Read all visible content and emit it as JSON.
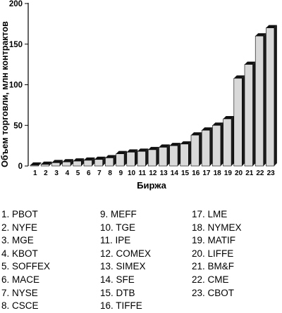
{
  "chart_data": {
    "type": "bar",
    "ylabel": "Объем торговли, млн контрактов",
    "xlabel": "Биржа",
    "ylim": [
      0,
      200
    ],
    "yticks": [
      0,
      50,
      100,
      150,
      200
    ],
    "grid": false,
    "legend": "below",
    "categories": [
      "1",
      "2",
      "3",
      "4",
      "5",
      "6",
      "7",
      "8",
      "9",
      "10",
      "11",
      "12",
      "13",
      "14",
      "15",
      "16",
      "17",
      "18",
      "19",
      "20",
      "21",
      "22",
      "23"
    ],
    "values": [
      1,
      2,
      4,
      5,
      6,
      7,
      8,
      10,
      15,
      17,
      18,
      20,
      23,
      25,
      27,
      38,
      44,
      50,
      58,
      108,
      125,
      160,
      170
    ]
  },
  "legend": {
    "separator": ". ",
    "items": [
      {
        "num": "1",
        "name": "PBOT"
      },
      {
        "num": "2",
        "name": "NYFE"
      },
      {
        "num": "3",
        "name": "MGE"
      },
      {
        "num": "4",
        "name": "KBOT"
      },
      {
        "num": "5",
        "name": "SOFFEX"
      },
      {
        "num": "6",
        "name": "MACE"
      },
      {
        "num": "7",
        "name": "NYSE"
      },
      {
        "num": "8",
        "name": "CSCE"
      },
      {
        "num": "9",
        "name": "MEFF"
      },
      {
        "num": "10",
        "name": "TGE"
      },
      {
        "num": "11",
        "name": "IPE"
      },
      {
        "num": "12",
        "name": "COMEX"
      },
      {
        "num": "13",
        "name": "SIMEX"
      },
      {
        "num": "14",
        "name": "SFE"
      },
      {
        "num": "15",
        "name": "DTB"
      },
      {
        "num": "16",
        "name": "TIFFE"
      },
      {
        "num": "17",
        "name": "LME"
      },
      {
        "num": "18",
        "name": "NYMEX"
      },
      {
        "num": "19",
        "name": "MATIF"
      },
      {
        "num": "20",
        "name": "LIFFE"
      },
      {
        "num": "21",
        "name": "BM&F"
      },
      {
        "num": "22",
        "name": "CME"
      },
      {
        "num": "23",
        "name": "CBOT"
      }
    ]
  },
  "colors": {
    "bar_front": "#d9d9d9",
    "bar_top": "#111111",
    "bar_side": "#1a1a1a",
    "axis": "#000000"
  }
}
